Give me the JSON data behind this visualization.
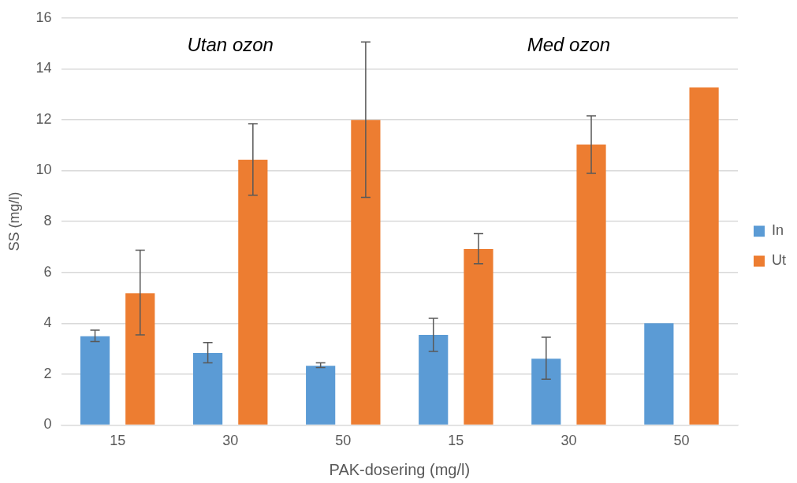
{
  "chart_data": {
    "type": "bar",
    "xlabel": "PAK-dosering (mg/l)",
    "ylabel": "SS (mg/l)",
    "categories": [
      "15",
      "30",
      "50",
      "15",
      "30",
      "50"
    ],
    "series": [
      {
        "name": "In",
        "color": "#5b9bd5",
        "values": [
          3.49,
          2.83,
          2.33,
          3.54,
          2.61,
          4.0
        ],
        "errors": [
          [
            3.28,
            3.73
          ],
          [
            2.44,
            3.24
          ],
          [
            2.26,
            2.44
          ],
          [
            2.89,
            4.19
          ],
          [
            1.8,
            3.45
          ],
          null
        ]
      },
      {
        "name": "Ut",
        "color": "#ed7d31",
        "values": [
          5.18,
          10.43,
          11.99,
          6.92,
          11.02,
          13.27
        ],
        "errors": [
          [
            3.54,
            6.87
          ],
          [
            9.03,
            11.84
          ],
          [
            8.95,
            15.06
          ],
          [
            6.34,
            7.52
          ],
          [
            9.89,
            12.15
          ],
          null
        ]
      }
    ],
    "ylim": [
      0,
      16
    ],
    "yticks": [
      0,
      2,
      4,
      6,
      8,
      10,
      12,
      14,
      16
    ],
    "grid": "y",
    "legend": "right",
    "annotations": [
      "Utan ozon",
      "Med ozon"
    ]
  }
}
